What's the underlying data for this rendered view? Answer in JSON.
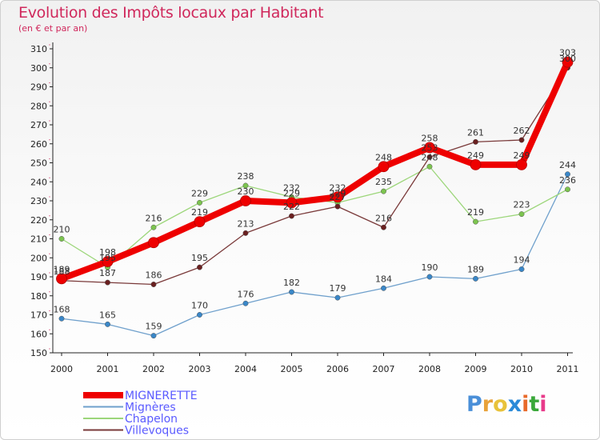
{
  "chart_data": {
    "type": "line",
    "title": "Evolution des Impôts locaux par Habitant",
    "subtitle": "(en € et par an)",
    "xlabel": "",
    "ylabel": "",
    "ylim": [
      150,
      310
    ],
    "yticks": [
      150,
      160,
      170,
      180,
      190,
      200,
      210,
      220,
      230,
      240,
      250,
      260,
      270,
      280,
      290,
      300,
      310
    ],
    "categories": [
      "2000",
      "2001",
      "2002",
      "2003",
      "2004",
      "2005",
      "2006",
      "2007",
      "2008",
      "2009",
      "2010",
      "2011"
    ],
    "series": [
      {
        "name": "Mignères",
        "color": "#6fa0cc",
        "marker": "#3a87c8",
        "width": 1.3,
        "values": [
          168,
          165,
          159,
          170,
          176,
          182,
          179,
          184,
          190,
          189,
          194,
          244
        ]
      },
      {
        "name": "Chapelon",
        "color": "#9cd67a",
        "marker": "#7cc44f",
        "width": 1.3,
        "values": [
          210,
          195,
          216,
          229,
          238,
          232,
          229,
          235,
          248,
          219,
          223,
          236
        ]
      },
      {
        "name": "Villevoques",
        "color": "#7a3a3a",
        "marker": "#6a2020",
        "width": 1.3,
        "values": [
          188,
          187,
          186,
          195,
          213,
          222,
          227,
          216,
          253,
          261,
          262,
          300
        ]
      },
      {
        "name": "MIGNERETTE",
        "color": "#ee0000",
        "marker": "#ee0000",
        "width": 8,
        "values": [
          189,
          198,
          208,
          219,
          230,
          229,
          232,
          248,
          258,
          249,
          249,
          303
        ]
      }
    ],
    "data_labels": {
      "MIGNERETTE": [
        "189",
        "198",
        "",
        "219",
        "230",
        "229",
        "232",
        "248",
        "258",
        "249",
        "249",
        "303"
      ],
      "Mignères": [
        "168",
        "165",
        "159",
        "170",
        "176",
        "182",
        "179",
        "184",
        "190",
        "189",
        "194",
        "244"
      ],
      "Chapelon": [
        "210",
        "195",
        "216",
        "229",
        "238",
        "232",
        "229",
        "235",
        "248",
        "219",
        "223",
        "236"
      ],
      "Villevoques": [
        "188",
        "187",
        "186",
        "195",
        "213",
        "222",
        "227",
        "216",
        "253",
        "261",
        "262",
        "300"
      ]
    },
    "legend": [
      "MIGNERETTE",
      "Mignères",
      "Chapelon",
      "Villevoques"
    ],
    "legend_position": "bottom-left",
    "grid": false
  },
  "branding": {
    "logo": [
      "P",
      "r",
      "o",
      "x",
      "i",
      "t",
      "i"
    ],
    "logo_colors": [
      "#4a8fd8",
      "#e8a23a",
      "#e8c23a",
      "#2a8ad8",
      "#e86a2a",
      "#3aa83a",
      "#e83a8a"
    ]
  }
}
